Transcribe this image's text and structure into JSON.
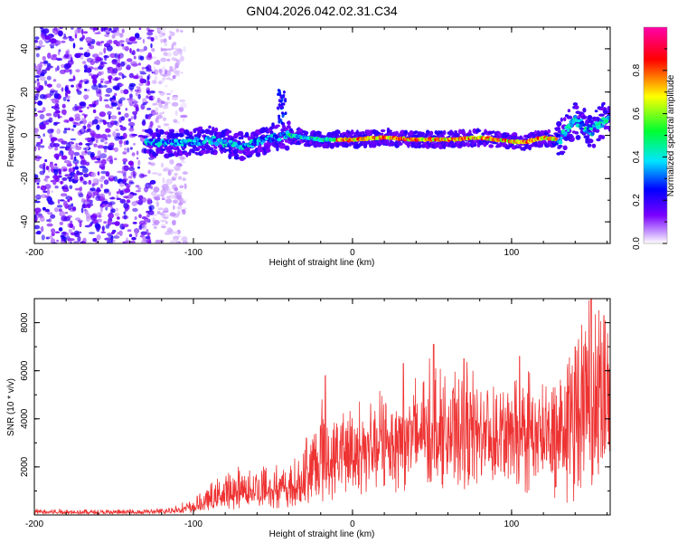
{
  "title": "GN04.2026.042.02.31.C34",
  "chart_data": [
    {
      "type": "heatmap",
      "name": "spectrogram",
      "xlabel": "Height of straight line (km)",
      "ylabel": "Frequency (Hz)",
      "xlim": [
        -200,
        162
      ],
      "ylim": [
        -50,
        50
      ],
      "x_ticks": [
        -200,
        -100,
        0,
        100
      ],
      "y_ticks": [
        -40,
        -20,
        0,
        20,
        40
      ],
      "x_tick_labels": [
        "-200",
        "-100",
        "0",
        "100"
      ],
      "y_tick_labels": [
        "-40",
        "-20",
        "0",
        "20",
        "40"
      ],
      "colorbar": {
        "label": "Normalized spectral amplitude",
        "range": [
          0,
          1
        ],
        "ticks": [
          0.0,
          0.2,
          0.4,
          0.6,
          0.8
        ],
        "tick_labels": [
          "0.0",
          "0.2",
          "0.4",
          "0.6",
          "0.8"
        ],
        "colors": [
          "#ffffff",
          "#7a00ff",
          "#0000ff",
          "#00e5ff",
          "#00ff00",
          "#ffff00",
          "#ff0000",
          "#ff00aa"
        ]
      },
      "ridge": {
        "x": [
          -130,
          -110,
          -90,
          -70,
          -50,
          -40,
          -30,
          -20,
          0,
          20,
          40,
          60,
          80,
          100,
          110,
          120,
          130,
          140,
          150,
          160
        ],
        "y": [
          -3,
          -4,
          -2,
          -5,
          -1,
          0,
          -1,
          -2,
          -2,
          -1,
          -2,
          -2,
          -1,
          -3,
          -3,
          -1,
          -2,
          7,
          2,
          8
        ],
        "comment": "dominant frequency track (Hz) vs height (km)"
      },
      "noise_region_x": [
        -200,
        -120
      ]
    },
    {
      "type": "line",
      "name": "snr",
      "xlabel": "Height of straight line (km)",
      "ylabel": "SNR (10 * v/v)",
      "xlim": [
        -200,
        162
      ],
      "ylim": [
        0,
        9000
      ],
      "x_ticks": [
        -200,
        -100,
        0,
        100
      ],
      "y_ticks": [
        2000,
        4000,
        6000,
        8000
      ],
      "x_tick_labels": [
        "-200",
        "-100",
        "0",
        "100"
      ],
      "y_tick_labels": [
        "2000",
        "4000",
        "6000",
        "8000"
      ],
      "series": [
        {
          "name": "SNR",
          "color": "#ee3333",
          "envelope_x": [
            -200,
            -150,
            -120,
            -100,
            -90,
            -80,
            -70,
            -60,
            -50,
            -40,
            -30,
            -20,
            -10,
            0,
            10,
            20,
            30,
            40,
            50,
            60,
            70,
            80,
            90,
            100,
            110,
            120,
            130,
            140,
            150,
            160
          ],
          "envelope_base": [
            100,
            80,
            100,
            250,
            450,
            600,
            700,
            750,
            800,
            900,
            1100,
            1500,
            2000,
            2400,
            2800,
            3000,
            3100,
            3200,
            3300,
            3300,
            3300,
            3300,
            3200,
            3100,
            3000,
            3000,
            2500,
            2500,
            2800,
            3000
          ],
          "envelope_peak": [
            300,
            250,
            300,
            700,
            1400,
            2000,
            2300,
            2500,
            2600,
            2200,
            3200,
            5800,
            4500,
            5300,
            4600,
            5500,
            5600,
            6300,
            7100,
            6300,
            6500,
            6600,
            6000,
            5900,
            6600,
            6000,
            6000,
            7000,
            9000,
            8300
          ],
          "peaks": [
            [
              -29,
              3200
            ],
            [
              -17,
              5800
            ],
            [
              32,
              6300
            ],
            [
              51,
              7100
            ],
            [
              70,
              6500
            ],
            [
              105,
              6600
            ],
            [
              140,
              7000
            ],
            [
              150,
              9000
            ],
            [
              158,
              8300
            ]
          ]
        }
      ]
    }
  ]
}
